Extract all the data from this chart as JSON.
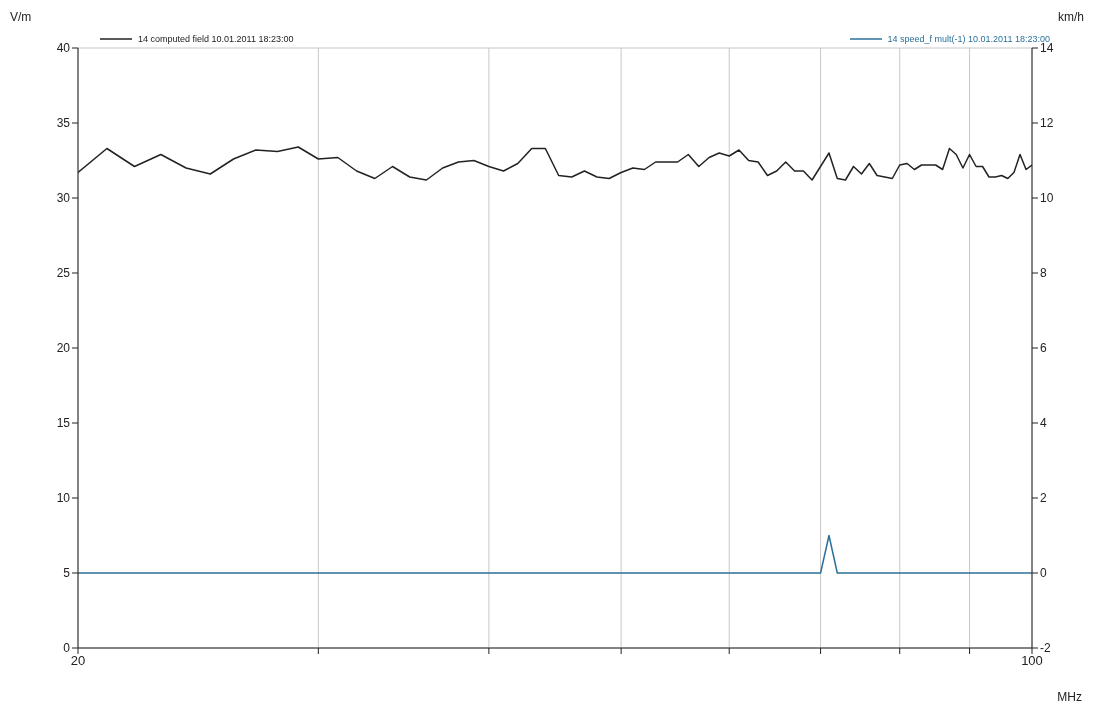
{
  "chart_data": {
    "type": "line",
    "xlabel": "MHz",
    "ylabel": "V/m",
    "y2label": "km/h",
    "log": "x",
    "grid": true,
    "legend": "top",
    "xlim": [
      20,
      100
    ],
    "xticks": [
      20,
      {
        "value": 30,
        "label": null
      },
      {
        "value": 40,
        "label": null
      },
      {
        "value": 50,
        "label": null
      },
      {
        "value": 60,
        "label": null
      },
      {
        "value": 70,
        "label": null
      },
      {
        "value": 80,
        "label": null
      },
      {
        "value": 90,
        "label": null
      },
      100
    ],
    "ylim": [
      0,
      40
    ],
    "yticks": [
      0,
      5,
      10,
      15,
      20,
      25,
      30,
      35,
      40
    ],
    "y2lim": [
      -2,
      14
    ],
    "y2ticks": [
      -2,
      0,
      2,
      4,
      6,
      8,
      10,
      12,
      14
    ],
    "series": [
      {
        "name": "14 computed field  10.01.2011 18:23:00",
        "color": "#222222",
        "x": [
          20,
          21,
          22,
          23,
          24,
          25,
          26,
          27,
          28,
          29,
          30,
          31,
          32,
          33,
          34,
          35,
          36,
          37,
          38,
          39,
          40,
          41,
          42,
          43,
          44,
          45,
          46,
          47,
          48,
          49,
          50,
          51,
          52,
          53,
          54,
          55,
          56,
          57,
          58,
          59,
          60,
          61,
          62,
          63,
          64,
          65,
          66,
          67,
          68,
          69,
          71,
          72,
          73,
          74,
          75,
          76,
          77,
          78,
          79,
          80,
          81,
          82,
          83,
          85,
          86,
          87,
          88,
          89,
          90,
          91,
          92,
          93,
          94,
          95,
          96,
          97,
          98,
          99,
          100
        ],
        "values": [
          31.7,
          33.3,
          32.1,
          32.9,
          32.0,
          31.6,
          32.6,
          33.2,
          33.1,
          33.4,
          32.6,
          32.7,
          31.8,
          31.3,
          32.1,
          31.4,
          31.2,
          32.0,
          32.4,
          32.5,
          32.1,
          31.8,
          32.3,
          33.3,
          33.3,
          31.5,
          31.4,
          31.8,
          31.4,
          31.3,
          31.7,
          32.0,
          31.9,
          32.4,
          32.4,
          32.4,
          32.9,
          32.1,
          32.7,
          33.0,
          32.8,
          33.2,
          32.5,
          32.4,
          31.5,
          31.8,
          32.4,
          31.8,
          31.8,
          31.2,
          33.0,
          31.3,
          31.2,
          32.1,
          31.6,
          32.3,
          31.5,
          31.4,
          31.3,
          32.2,
          32.3,
          31.9,
          32.2,
          32.2,
          31.9,
          33.3,
          32.9,
          32.0,
          32.9,
          32.1,
          32.1,
          31.4,
          31.4,
          31.5,
          31.3,
          31.7,
          32.9,
          31.9,
          32.2
        ]
      },
      {
        "name": "14 speed_f mult(-1)  10.01.2011 18:23:00",
        "color": "#2a7098",
        "axis": "y2",
        "x": [
          20,
          70,
          71,
          72,
          100
        ],
        "values": [
          0,
          0,
          1,
          0,
          0
        ]
      }
    ]
  }
}
